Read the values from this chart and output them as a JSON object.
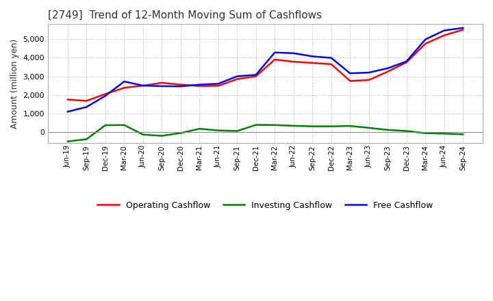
{
  "title": "[2749]  Trend of 12-Month Moving Sum of Cashflows",
  "ylabel": "Amount (million yen)",
  "x_labels": [
    "Jun-19",
    "Sep-19",
    "Dec-19",
    "Mar-20",
    "Jun-20",
    "Sep-20",
    "Dec-20",
    "Mar-21",
    "Jun-21",
    "Sep-21",
    "Dec-21",
    "Mar-22",
    "Jun-22",
    "Sep-22",
    "Dec-22",
    "Mar-23",
    "Jun-23",
    "Sep-23",
    "Dec-23",
    "Mar-24",
    "Jun-24",
    "Sep-24"
  ],
  "operating_cf": [
    1750,
    1680,
    2050,
    2380,
    2500,
    2650,
    2550,
    2480,
    2490,
    2850,
    3000,
    3900,
    3780,
    3720,
    3650,
    2750,
    2800,
    3250,
    3750,
    4750,
    5200,
    5500
  ],
  "investing_cf": [
    -500,
    -380,
    370,
    380,
    -130,
    -200,
    -50,
    180,
    90,
    60,
    390,
    380,
    340,
    310,
    310,
    330,
    230,
    120,
    60,
    -55,
    -80,
    -120
  ],
  "free_cf": [
    1100,
    1350,
    1950,
    2720,
    2500,
    2470,
    2460,
    2550,
    2600,
    3000,
    3080,
    4280,
    4240,
    4070,
    3990,
    3160,
    3200,
    3430,
    3800,
    4980,
    5460,
    5600
  ],
  "operating_color": "#ff0000",
  "investing_color": "#008000",
  "free_color": "#0000ff",
  "background_color": "#ffffff",
  "grid_color": "#aaaaaa",
  "ylim": [
    -600,
    5800
  ],
  "yticks": [
    0,
    1000,
    2000,
    3000,
    4000,
    5000
  ],
  "line_width": 1.8,
  "title_color": "#333333"
}
